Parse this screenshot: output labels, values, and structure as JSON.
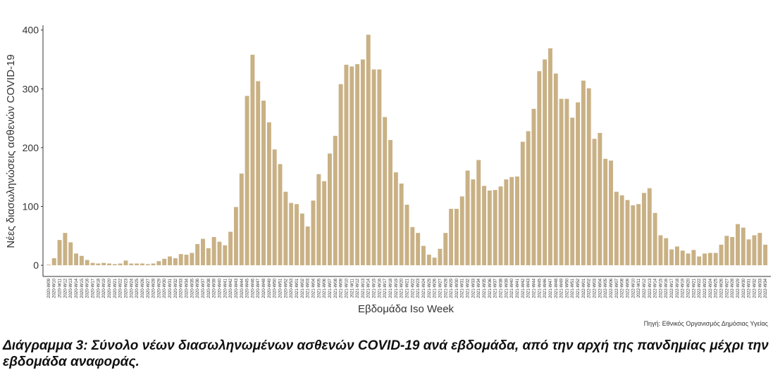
{
  "chart_data": {
    "type": "bar",
    "y_axis_label": "Νέες διασωληνώσεις ασθενών COVID-19",
    "x_axis_label": "Εβδομάδα Iso Week",
    "source": "Πηγή: Εθνικός Οργανισμός Δημόσιας Υγείας",
    "color": "#c9b185",
    "ylim": [
      -19,
      408
    ],
    "yticks": [
      0,
      100,
      200,
      300,
      400
    ],
    "grid": false,
    "categories": [
      "2020-W09",
      "2020-W10",
      "2020-W11",
      "2020-W12",
      "2020-W13",
      "2020-W14",
      "2020-W15",
      "2020-W16",
      "2020-W17",
      "2020-W18",
      "2020-W19",
      "2020-W20",
      "2020-W21",
      "2020-W22",
      "2020-W23",
      "2020-W24",
      "2020-W25",
      "2020-W26",
      "2020-W27",
      "2020-W28",
      "2020-W29",
      "2020-W30",
      "2020-W31",
      "2020-W32",
      "2020-W33",
      "2020-W34",
      "2020-W35",
      "2020-W36",
      "2020-W37",
      "2020-W38",
      "2020-W39",
      "2020-W40",
      "2020-W41",
      "2020-W42",
      "2020-W43",
      "2020-W44",
      "2020-W45",
      "2020-W46",
      "2020-W47",
      "2020-W48",
      "2020-W49",
      "2020-W50",
      "2020-W51",
      "2020-W52",
      "2020-W53",
      "2021-W01",
      "2021-W02",
      "2021-W03",
      "2021-W04",
      "2021-W05",
      "2021-W06",
      "2021-W07",
      "2021-W08",
      "2021-W09",
      "2021-W10",
      "2021-W11",
      "2021-W12",
      "2021-W13",
      "2021-W14",
      "2021-W15",
      "2021-W16",
      "2021-W17",
      "2021-W18",
      "2021-W19",
      "2021-W20",
      "2021-W21",
      "2021-W22",
      "2021-W23",
      "2021-W24",
      "2021-W25",
      "2021-W26",
      "2021-W27",
      "2021-W28",
      "2021-W29",
      "2021-W30",
      "2021-W31",
      "2021-W32",
      "2021-W33",
      "2021-W34",
      "2021-W35",
      "2021-W36",
      "2021-W37",
      "2021-W38",
      "2021-W39",
      "2021-W40",
      "2021-W41",
      "2021-W42",
      "2021-W43",
      "2021-W44",
      "2021-W45",
      "2021-W46",
      "2021-W47",
      "2021-W48",
      "2021-W49",
      "2021-W50",
      "2021-W51",
      "2021-W52",
      "2022-W01",
      "2022-W02",
      "2022-W03",
      "2022-W04",
      "2022-W05",
      "2022-W06",
      "2022-W07",
      "2022-W08",
      "2022-W09",
      "2022-W10",
      "2022-W11",
      "2022-W12",
      "2022-W13",
      "2022-W14",
      "2022-W15",
      "2022-W16",
      "2022-W17",
      "2022-W18",
      "2022-W19",
      "2022-W20",
      "2022-W21",
      "2022-W22",
      "2022-W23",
      "2022-W24",
      "2022-W25",
      "2022-W26",
      "2022-W27",
      "2022-W28",
      "2022-W29",
      "2022-W30",
      "2022-W31",
      "2022-W32",
      "2022-W33",
      "2022-W34"
    ],
    "values": [
      1,
      12,
      43,
      55,
      39,
      20,
      16,
      9,
      4,
      3,
      4,
      3,
      2,
      3,
      8,
      3,
      3,
      3,
      2,
      3,
      7,
      11,
      15,
      12,
      19,
      18,
      21,
      36,
      45,
      29,
      48,
      40,
      34,
      57,
      99,
      156,
      288,
      358,
      313,
      280,
      243,
      197,
      172,
      125,
      106,
      104,
      88,
      66,
      110,
      155,
      143,
      190,
      220,
      308,
      341,
      338,
      342,
      350,
      392,
      333,
      333,
      252,
      213,
      158,
      139,
      103,
      65,
      55,
      33,
      18,
      13,
      28,
      55,
      96,
      96,
      117,
      161,
      146,
      179,
      135,
      127,
      128,
      134,
      146,
      150,
      151,
      210,
      228,
      266,
      330,
      350,
      369,
      326,
      283,
      283,
      251,
      277,
      314,
      301,
      215,
      225,
      181,
      178,
      125,
      119,
      111,
      102,
      104,
      123,
      131,
      89,
      51,
      46,
      27,
      32,
      25,
      20,
      26,
      15,
      20,
      21,
      21,
      35,
      50,
      48,
      70,
      64,
      44,
      51,
      55,
      35
    ]
  },
  "caption": "Διάγραμμα 3: Σύνολο νέων διασωληνωμένων ασθενών COVID-19 ανά εβδομάδα, από την αρχή της πανδημίας μέχρι την εβδομάδα αναφοράς."
}
